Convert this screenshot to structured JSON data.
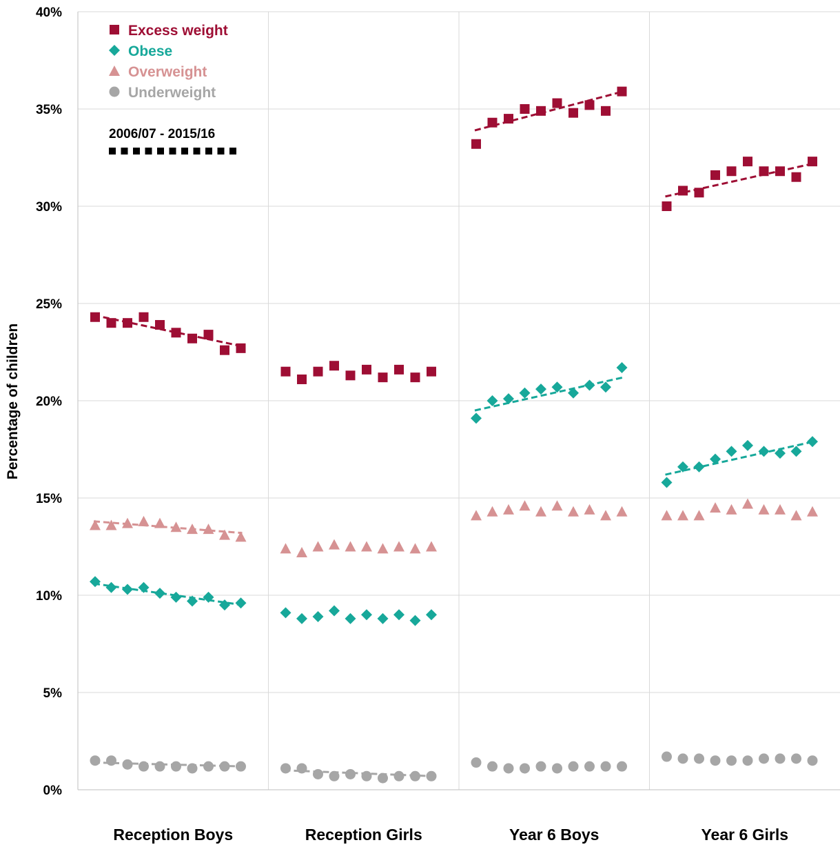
{
  "chart_data": {
    "type": "scatter",
    "ylabel": "Percentage of children",
    "ylim": [
      0,
      40
    ],
    "yticks": [
      "0%",
      "5%",
      "10%",
      "15%",
      "20%",
      "25%",
      "30%",
      "35%",
      "40%"
    ],
    "ytick_values": [
      0,
      5,
      10,
      15,
      20,
      25,
      30,
      35,
      40
    ],
    "grid": true,
    "legend_position": "top-left",
    "groups": [
      "Reception Boys",
      "Reception Girls",
      "Year 6 Boys",
      "Year 6 Girls"
    ],
    "points_per_group": 10,
    "period_note": "2006/07 - 2015/16",
    "series": [
      {
        "name": "Excess weight",
        "color": "#9E0E34",
        "marker": "square",
        "values": {
          "Reception Boys": [
            24.3,
            24.0,
            24.0,
            24.3,
            23.9,
            23.5,
            23.2,
            23.4,
            22.6,
            22.7
          ],
          "Reception Girls": [
            21.5,
            21.1,
            21.5,
            21.8,
            21.3,
            21.6,
            21.2,
            21.6,
            21.2,
            21.5
          ],
          "Year 6 Boys": [
            33.2,
            34.3,
            34.5,
            35.0,
            34.9,
            35.3,
            34.8,
            35.2,
            34.9,
            35.9
          ],
          "Year 6 Girls": [
            30.0,
            30.8,
            30.7,
            31.6,
            31.8,
            32.3,
            31.8,
            31.8,
            31.5,
            32.3
          ]
        },
        "trend": {
          "Reception Boys": [
            24.4,
            22.8
          ],
          "Year 6 Boys": [
            33.9,
            35.9
          ],
          "Year 6 Girls": [
            30.5,
            32.2
          ]
        }
      },
      {
        "name": "Obese",
        "color": "#17A89A",
        "marker": "diamond",
        "values": {
          "Reception Boys": [
            10.7,
            10.4,
            10.3,
            10.4,
            10.1,
            9.9,
            9.7,
            9.9,
            9.5,
            9.6
          ],
          "Reception Girls": [
            9.1,
            8.8,
            8.9,
            9.2,
            8.8,
            9.0,
            8.8,
            9.0,
            8.7,
            9.0
          ],
          "Year 6 Boys": [
            19.1,
            20.0,
            20.1,
            20.4,
            20.6,
            20.7,
            20.4,
            20.8,
            20.7,
            21.7
          ],
          "Year 6 Girls": [
            15.8,
            16.6,
            16.6,
            17.0,
            17.4,
            17.7,
            17.4,
            17.3,
            17.4,
            17.9
          ]
        },
        "trend": {
          "Reception Boys": [
            10.6,
            9.5
          ],
          "Year 6 Boys": [
            19.5,
            21.2
          ],
          "Year 6 Girls": [
            16.2,
            17.9
          ]
        }
      },
      {
        "name": "Overweight",
        "color": "#D69293",
        "marker": "triangle",
        "values": {
          "Reception Boys": [
            13.6,
            13.6,
            13.7,
            13.8,
            13.7,
            13.5,
            13.4,
            13.4,
            13.1,
            13.0
          ],
          "Reception Girls": [
            12.4,
            12.2,
            12.5,
            12.6,
            12.5,
            12.5,
            12.4,
            12.5,
            12.4,
            12.5
          ],
          "Year 6 Boys": [
            14.1,
            14.3,
            14.4,
            14.6,
            14.3,
            14.6,
            14.3,
            14.4,
            14.1,
            14.3
          ],
          "Year 6 Girls": [
            14.1,
            14.1,
            14.1,
            14.5,
            14.4,
            14.7,
            14.4,
            14.4,
            14.1,
            14.3
          ]
        },
        "trend": {
          "Reception Boys": [
            13.8,
            13.2
          ]
        }
      },
      {
        "name": "Underweight",
        "color": "#A6A6A6",
        "marker": "circle",
        "values": {
          "Reception Boys": [
            1.5,
            1.5,
            1.3,
            1.2,
            1.2,
            1.2,
            1.1,
            1.2,
            1.2,
            1.2
          ],
          "Reception Girls": [
            1.1,
            1.1,
            0.8,
            0.7,
            0.8,
            0.7,
            0.6,
            0.7,
            0.7,
            0.7
          ],
          "Year 6 Boys": [
            1.4,
            1.2,
            1.1,
            1.1,
            1.2,
            1.1,
            1.2,
            1.2,
            1.2,
            1.2
          ],
          "Year 6 Girls": [
            1.7,
            1.6,
            1.6,
            1.5,
            1.5,
            1.5,
            1.6,
            1.6,
            1.6,
            1.5
          ]
        },
        "trend": {
          "Reception Boys": [
            1.4,
            1.2
          ],
          "Reception Girls": [
            1.0,
            0.7
          ]
        }
      }
    ]
  }
}
